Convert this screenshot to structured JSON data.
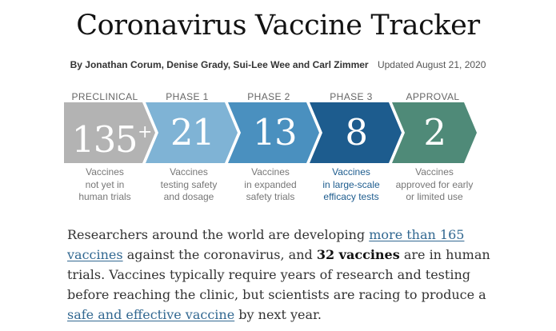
{
  "header": {
    "title": "Coronavirus Vaccine Tracker",
    "byline": "By Jonathan Corum, Denise Grady, Sui-Lee Wee and Carl Zimmer",
    "updated": "Updated August 21, 2020"
  },
  "pipeline": [
    {
      "phase": "PRECLINICAL",
      "count": "135",
      "suffix": "+",
      "line1": "Vaccines",
      "line2": "not yet in",
      "line3": "human trials",
      "color": "#b3b3b3"
    },
    {
      "phase": "PHASE 1",
      "count": "21",
      "suffix": "",
      "line1": "Vaccines",
      "line2": "testing safety",
      "line3": "and dosage",
      "color": "#7fb3d5"
    },
    {
      "phase": "PHASE 2",
      "count": "13",
      "suffix": "",
      "line1": "Vaccines",
      "line2": "in expanded",
      "line3": "safety trials",
      "color": "#4a90bf"
    },
    {
      "phase": "PHASE 3",
      "count": "8",
      "suffix": "",
      "line1": "Vaccines",
      "line2": "in large-scale",
      "line3": "efficacy tests",
      "color": "#1d5c8e"
    },
    {
      "phase": "APPROVAL",
      "count": "2",
      "suffix": "",
      "line1": "Vaccines",
      "line2": "approved for early",
      "line3": "or limited use",
      "color": "#4f8a78"
    }
  ],
  "body": {
    "part1": "Researchers around the world are developing ",
    "link1": "more than 165 vaccines",
    "part2": " against the coronavirus, and ",
    "bold": "32 vaccines",
    "part3": " are in human trials. Vaccines typically require years of research and testing before reaching the clinic, but scientists are racing to produce a ",
    "link2": "safe and effective vaccine",
    "part4": " by next year."
  }
}
